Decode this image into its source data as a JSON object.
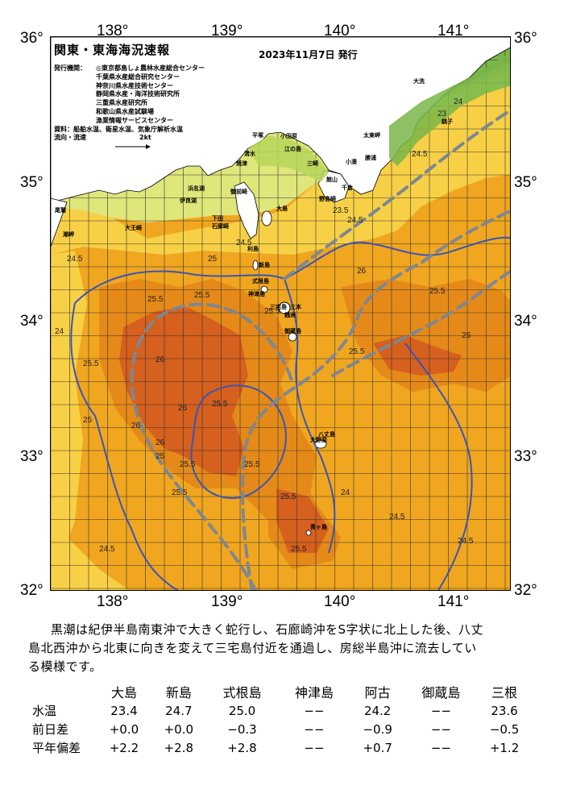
{
  "map": {
    "title": "関東・東海海況速報",
    "issue_date": "2023年11月7日 発行",
    "issuer_label": "発行機関：",
    "issuers": [
      "◎東京都島しょ農林水産総合センター",
      "千葉県水産総合研究センター",
      "神奈川県水産技術センター",
      "静岡県水産・海洋技術研究所",
      "三重県水産研究所",
      "和歌山県水産試験場",
      "漁業情報サービスセンター"
    ],
    "source_line": "資料：船舶水温、衛星水温、気象庁解析水温",
    "flow_label": "流向・流速",
    "flow_scale": "2kt",
    "longitude_labels": [
      "138°",
      "139°",
      "140°",
      "141°"
    ],
    "latitude_labels": [
      "36°",
      "35°",
      "34°",
      "33°",
      "32°"
    ],
    "places": [
      "大洗",
      "銚子",
      "太東岬",
      "勝浦",
      "小湊",
      "館山",
      "千倉",
      "野島崎",
      "大島",
      "利島",
      "新島",
      "式根島",
      "神津島",
      "三宅島",
      "御蔵島",
      "三本",
      "銭洲",
      "八丈島",
      "青ヶ島",
      "大野原",
      "清水",
      "焼津",
      "御前崎",
      "浜名湖",
      "伊良湖",
      "大王崎",
      "尾鷲",
      "潮岬",
      "小田原",
      "平塚",
      "江の島",
      "三崎",
      "石廊崎",
      "下田"
    ],
    "isotherm_labels": [
      "23",
      "23.5",
      "24",
      "24.5",
      "25",
      "25.5",
      "26"
    ],
    "colors": {
      "t_le_21": "#7ab648",
      "t_21_22": "#b7d55a",
      "t_22_23": "#dfe67a",
      "t_23_24": "#f7d046",
      "t_24_25": "#f0a61f",
      "t_25_26": "#e58a18",
      "t_ge_26": "#d6601e",
      "kuroshio_path": "#7d8791",
      "depth_contour": "#3a55b5",
      "land": "#ffffff"
    }
  },
  "summary": {
    "line1": "黒潮は紀伊半島南東沖で大きく蛇行し、石廊崎沖をS字状に北上した後、八丈",
    "line2": "島北西沖から北東に向きを変えて三宅島付近を通過し、房総半島沖に流去してい",
    "line3": "る模様です。"
  },
  "table": {
    "columns": [
      "大島",
      "新島",
      "式根島",
      "神津島",
      "阿古",
      "御蔵島",
      "三根"
    ],
    "rows": [
      {
        "label": "水温",
        "values": [
          "23.4",
          "24.7",
          "25.0",
          "−−",
          "24.2",
          "−−",
          "23.6"
        ]
      },
      {
        "label": "前日差",
        "values": [
          "+0.0",
          "+0.0",
          "−0.3",
          "−−",
          "−0.9",
          "−−",
          "−0.5"
        ]
      },
      {
        "label": "平年偏差",
        "values": [
          "+2.2",
          "+2.8",
          "+2.8",
          "−−",
          "+0.7",
          "−−",
          "+1.2"
        ]
      }
    ]
  }
}
